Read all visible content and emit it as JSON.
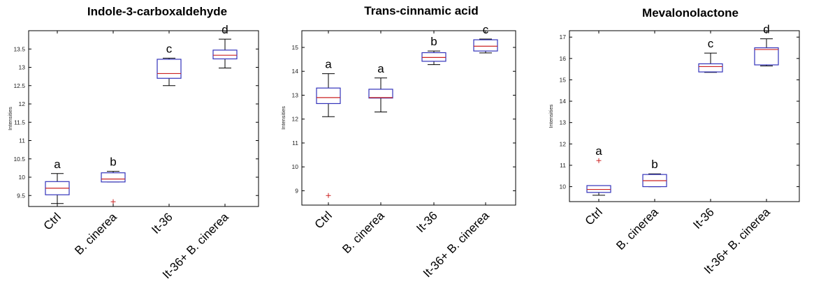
{
  "figure": {
    "colors": {
      "box": "#3333bb",
      "median": "#cc2222",
      "whisker": "#000000",
      "outlier": "#cc2222",
      "axis": "#000000"
    }
  },
  "chart_data": [
    {
      "type": "box",
      "title": "Indole-3-carboxaldehyde",
      "ylabel": "Intensities",
      "ylim": [
        9.2,
        14.0
      ],
      "yticks": [
        "9.5",
        "10",
        "10.5",
        "11",
        "11.5",
        "12",
        "12.5",
        "13",
        "13.5"
      ],
      "categories": [
        "Ctrl",
        "B. cinerea",
        "It-36",
        "It-36+ B. cinerea"
      ],
      "boxes": [
        {
          "min": 9.28,
          "q1": 9.52,
          "median": 9.7,
          "q3": 9.88,
          "max": 10.1,
          "outliers": [],
          "letter": "a"
        },
        {
          "min": 9.87,
          "q1": 9.87,
          "median": 9.95,
          "q3": 10.12,
          "max": 10.16,
          "outliers": [
            9.33
          ],
          "letter": "b"
        },
        {
          "min": 12.5,
          "q1": 12.7,
          "median": 12.83,
          "q3": 13.22,
          "max": 13.25,
          "outliers": [],
          "letter": "c"
        },
        {
          "min": 12.98,
          "q1": 13.23,
          "median": 13.33,
          "q3": 13.47,
          "max": 13.77,
          "outliers": [],
          "letter": "d"
        }
      ]
    },
    {
      "type": "box",
      "title": "Trans-cinnamic acid",
      "ylabel": "Intensities",
      "ylim": [
        8.4,
        15.7
      ],
      "yticks": [
        "9",
        "10",
        "11",
        "12",
        "13",
        "14",
        "15"
      ],
      "categories": [
        "Ctrl",
        "B. cinerea",
        "It-36",
        "It-36+ B. cinerea"
      ],
      "boxes": [
        {
          "min": 12.1,
          "q1": 12.65,
          "median": 12.9,
          "q3": 13.3,
          "max": 13.9,
          "outliers": [
            8.8
          ],
          "letter": "a"
        },
        {
          "min": 12.3,
          "q1": 12.88,
          "median": 12.9,
          "q3": 13.25,
          "max": 13.72,
          "outliers": [],
          "letter": "a"
        },
        {
          "min": 14.28,
          "q1": 14.42,
          "median": 14.58,
          "q3": 14.78,
          "max": 14.85,
          "outliers": [],
          "letter": "b"
        },
        {
          "min": 14.77,
          "q1": 14.85,
          "median": 15.05,
          "q3": 15.32,
          "max": 15.35,
          "outliers": [],
          "letter": "c"
        }
      ]
    },
    {
      "type": "box",
      "title": "Mevalonolactone",
      "ylabel": "Intensities",
      "ylim": [
        9.3,
        17.3
      ],
      "yticks": [
        "10",
        "11",
        "12",
        "13",
        "14",
        "15",
        "16",
        "17"
      ],
      "categories": [
        "Ctrl",
        "B. cinerea",
        "It-36",
        "It-36+ B. cinerea"
      ],
      "boxes": [
        {
          "min": 9.6,
          "q1": 9.73,
          "median": 9.87,
          "q3": 10.05,
          "max": 10.05,
          "outliers": [
            11.22
          ],
          "letter": "a"
        },
        {
          "min": 10.0,
          "q1": 10.0,
          "median": 10.28,
          "q3": 10.57,
          "max": 10.6,
          "outliers": [],
          "letter": "b"
        },
        {
          "min": 15.35,
          "q1": 15.37,
          "median": 15.62,
          "q3": 15.75,
          "max": 16.25,
          "outliers": [],
          "letter": "c"
        },
        {
          "min": 15.65,
          "q1": 15.7,
          "median": 16.42,
          "q3": 16.5,
          "max": 16.92,
          "outliers": [],
          "letter": "d"
        }
      ]
    }
  ]
}
